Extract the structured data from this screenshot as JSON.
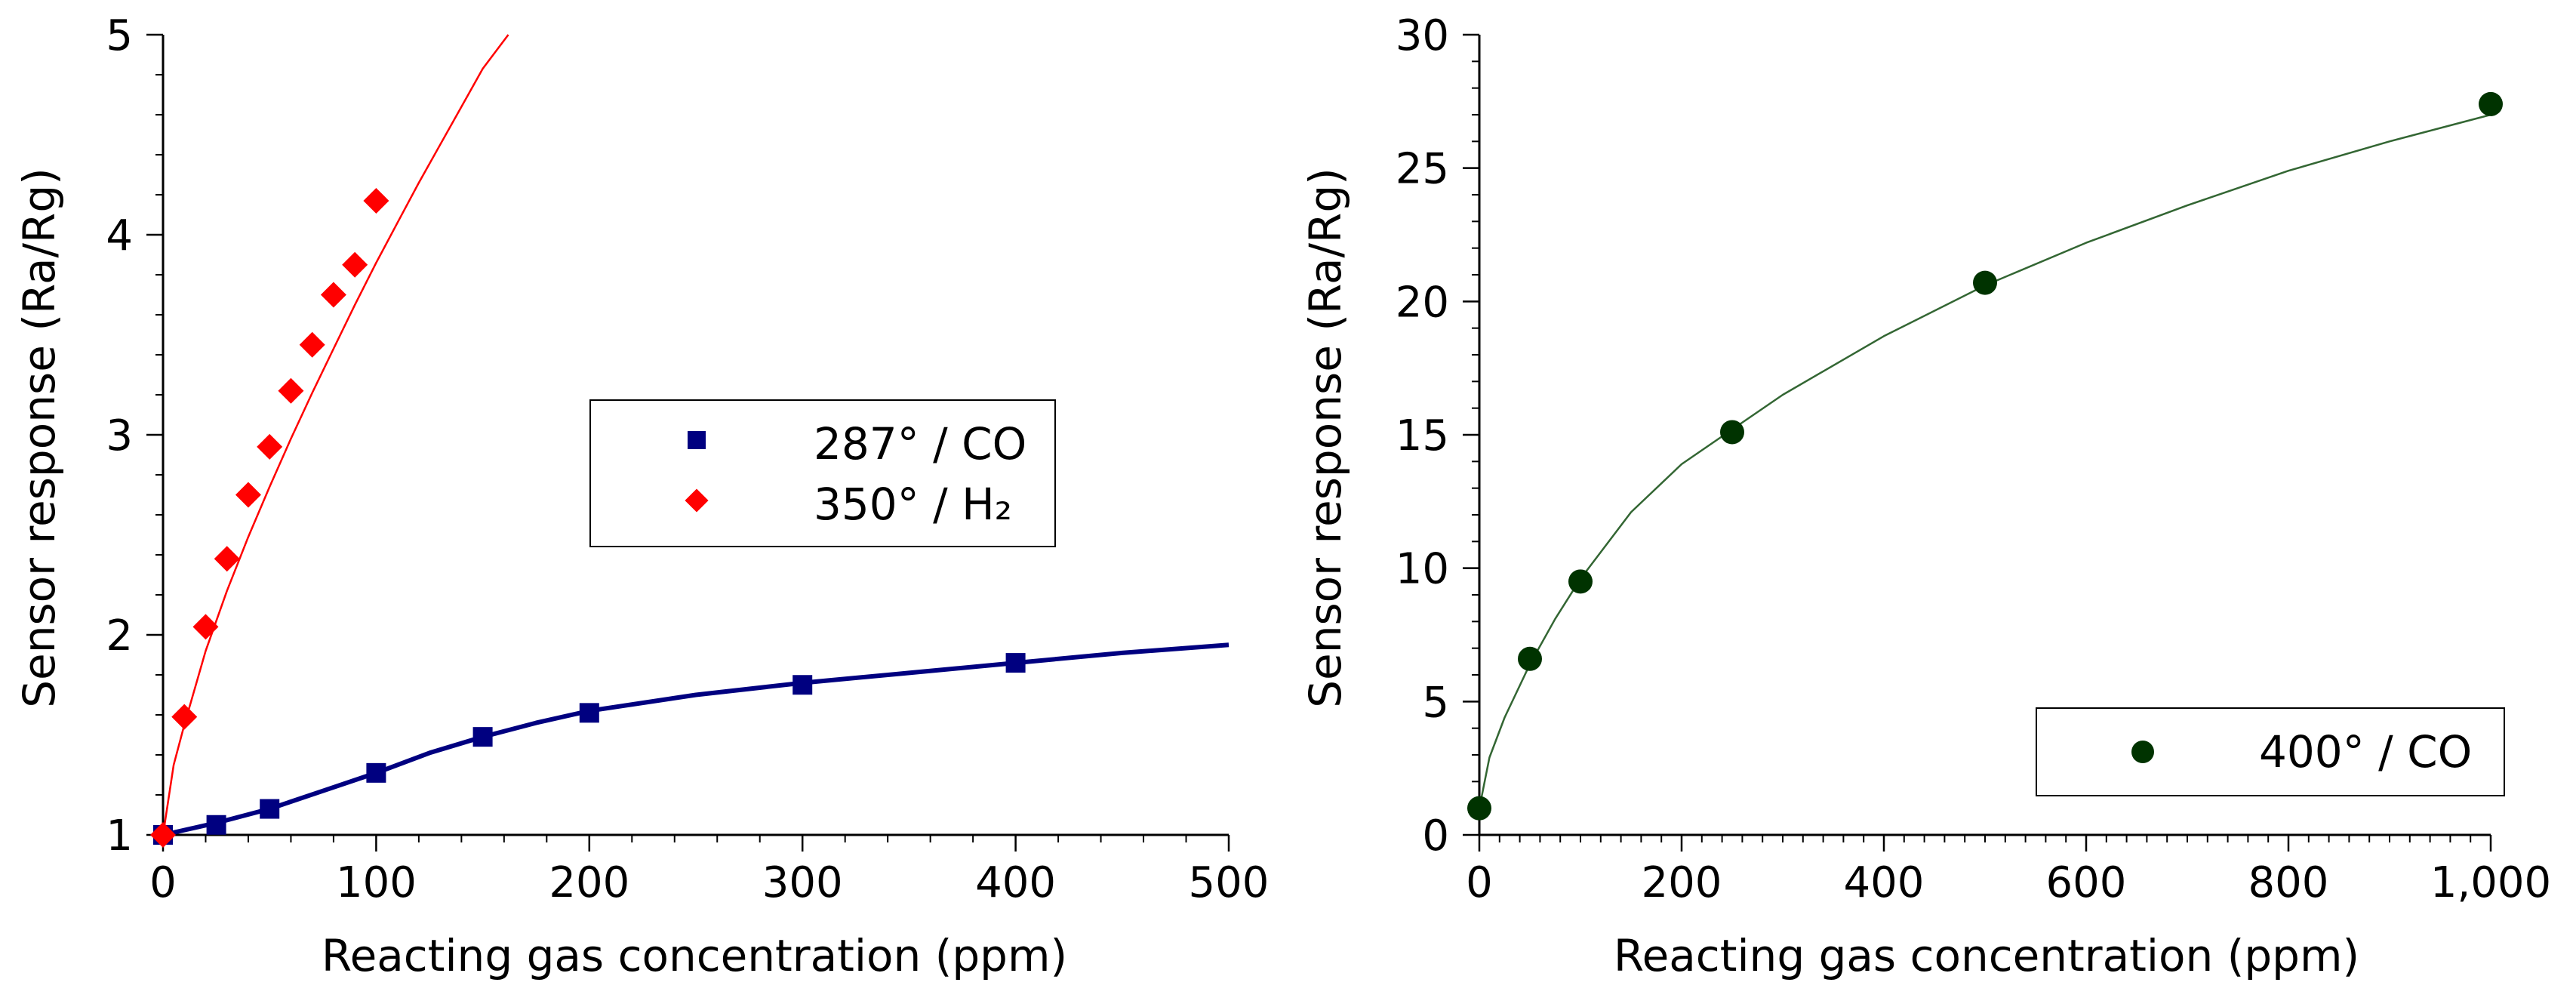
{
  "chart_data": [
    {
      "type": "scatter",
      "xlabel": "Reacting gas concentration (ppm)",
      "ylabel": "Sensor response (Ra/Rg)",
      "xlim": [
        0,
        500
      ],
      "ylim": [
        1,
        5
      ],
      "xticks": [
        0,
        100,
        200,
        300,
        400,
        500
      ],
      "xtick_labels": [
        "0",
        "100",
        "200",
        "300",
        "400",
        "500"
      ],
      "yticks": [
        1,
        2,
        3,
        4,
        5
      ],
      "ytick_labels": [
        "1",
        "2",
        "3",
        "4",
        "5"
      ],
      "legend_position": "center-right",
      "series": [
        {
          "name": "287° / CO",
          "marker": "square",
          "color": "#000080",
          "x": [
            0,
            25,
            50,
            100,
            150,
            200,
            300,
            400
          ],
          "y": [
            1.0,
            1.05,
            1.13,
            1.31,
            1.49,
            1.61,
            1.75,
            1.86
          ],
          "fit_x": [
            0,
            25,
            50,
            75,
            100,
            125,
            150,
            175,
            200,
            250,
            300,
            350,
            400,
            450,
            500
          ],
          "fit_y": [
            1.0,
            1.06,
            1.13,
            1.22,
            1.31,
            1.41,
            1.49,
            1.56,
            1.62,
            1.7,
            1.76,
            1.81,
            1.86,
            1.91,
            1.95
          ]
        },
        {
          "name": "350° / H₂",
          "marker": "diamond",
          "color": "#ff0000",
          "x": [
            0,
            10,
            20,
            30,
            40,
            50,
            60,
            70,
            80,
            90,
            100
          ],
          "y": [
            1.0,
            1.59,
            2.04,
            2.38,
            2.7,
            2.94,
            3.22,
            3.45,
            3.7,
            3.85,
            4.17
          ],
          "fit_x": [
            0,
            5,
            10,
            20,
            30,
            40,
            50,
            60,
            70,
            80,
            90,
            100,
            110,
            120,
            130,
            140,
            150,
            162
          ],
          "fit_y": [
            1.0,
            1.35,
            1.55,
            1.92,
            2.22,
            2.49,
            2.74,
            2.98,
            3.21,
            3.43,
            3.65,
            3.86,
            4.06,
            4.26,
            4.45,
            4.64,
            4.83,
            5.0
          ]
        }
      ]
    },
    {
      "type": "scatter",
      "xlabel": "Reacting gas concentration (ppm)",
      "ylabel": "Sensor response (Ra/Rg)",
      "xlim": [
        0,
        1000
      ],
      "ylim": [
        0,
        30
      ],
      "xticks": [
        0,
        200,
        400,
        600,
        800,
        1000
      ],
      "xtick_labels": [
        "0",
        "200",
        "400",
        "600",
        "800",
        "1,000"
      ],
      "yticks": [
        0,
        5,
        10,
        15,
        20,
        25,
        30
      ],
      "ytick_labels": [
        "0",
        "5",
        "10",
        "15",
        "20",
        "25",
        "30"
      ],
      "legend_position": "lower-right",
      "series": [
        {
          "name": "400° / CO",
          "marker": "circle",
          "color": "#003300",
          "line_color": "#336633",
          "x": [
            0,
            50,
            100,
            250,
            500,
            1000
          ],
          "y": [
            1.0,
            6.6,
            9.5,
            15.1,
            20.7,
            27.4
          ],
          "fit_x": [
            0,
            10,
            25,
            50,
            75,
            100,
            150,
            200,
            250,
            300,
            400,
            500,
            600,
            700,
            800,
            900,
            1000
          ],
          "fit_y": [
            1.0,
            2.9,
            4.4,
            6.4,
            8.1,
            9.6,
            12.1,
            13.9,
            15.2,
            16.5,
            18.7,
            20.6,
            22.2,
            23.6,
            24.9,
            26.0,
            27.0
          ]
        }
      ]
    }
  ]
}
